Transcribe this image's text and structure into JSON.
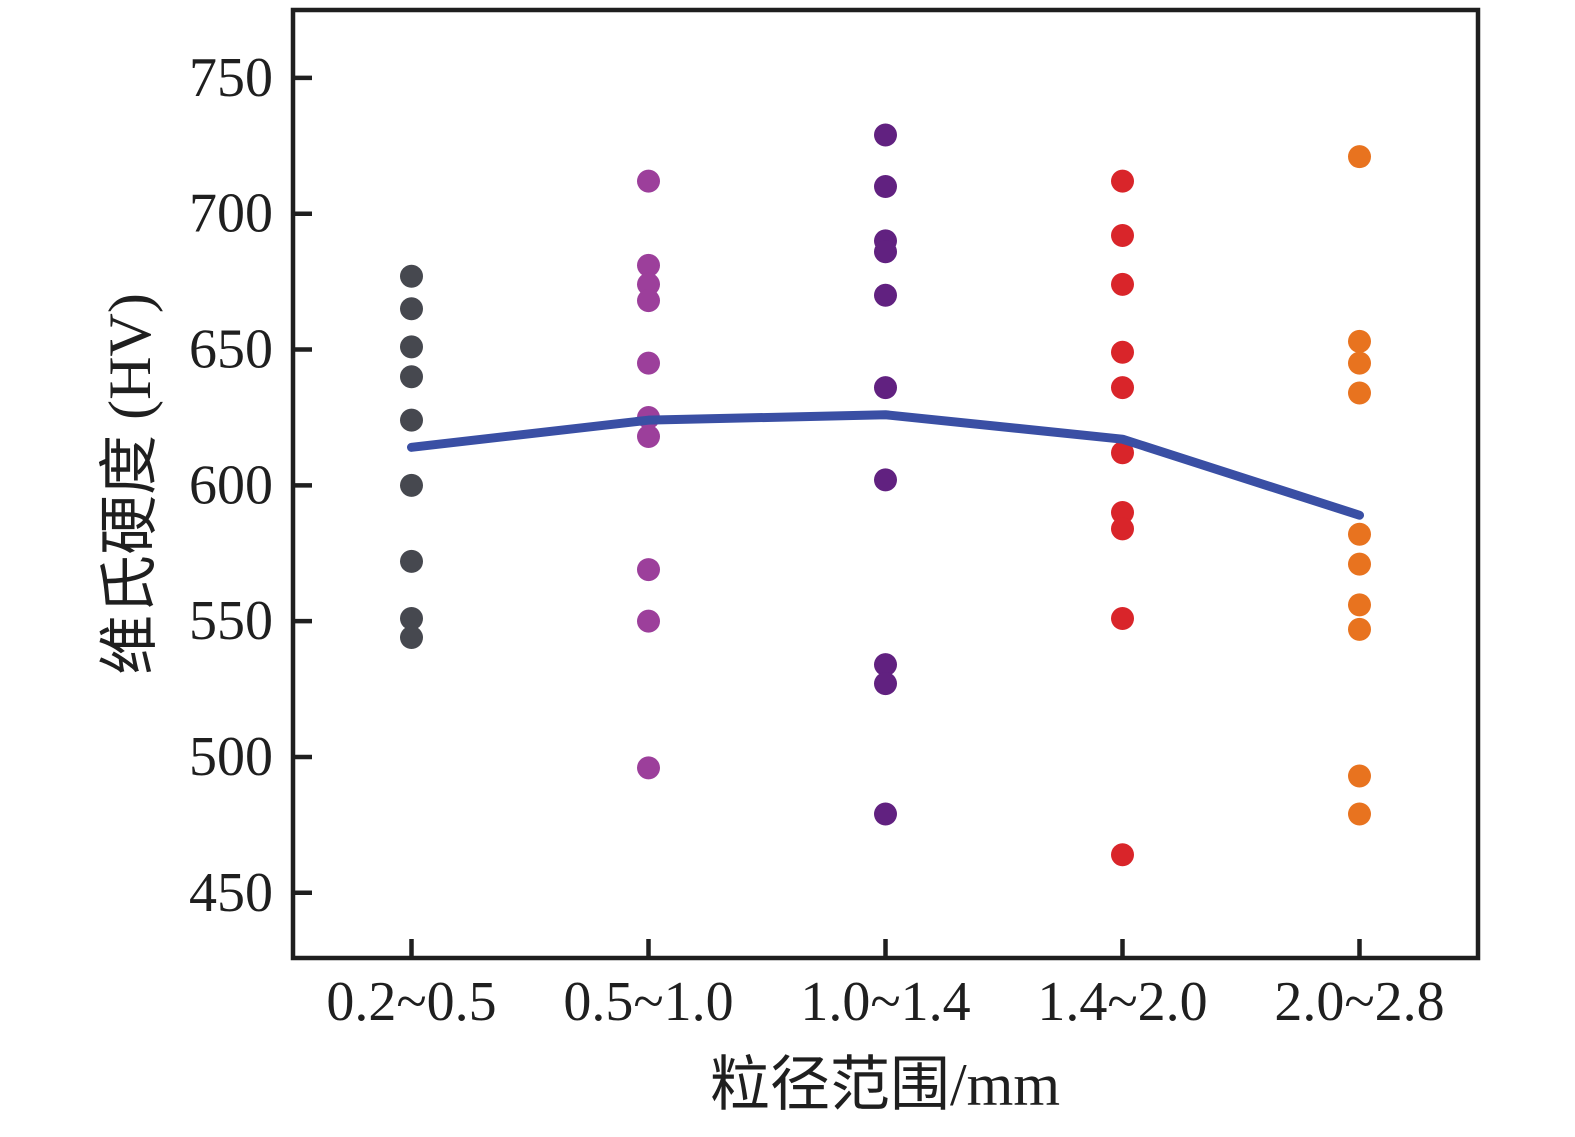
{
  "chart_data": {
    "type": "scatter",
    "title": "",
    "xlabel": "粒径范围/mm",
    "ylabel": "维氏硬度 (HV)",
    "categories": [
      "0.2~0.5",
      "0.5~1.0",
      "1.0~1.4",
      "1.4~2.0",
      "2.0~2.8"
    ],
    "ylim": [
      426,
      775
    ],
    "yticks": [
      450,
      500,
      550,
      600,
      650,
      700,
      750
    ],
    "grid": false,
    "legend": "none",
    "background_color": "#ffffff",
    "axis_color": "#1f1f1f",
    "series": [
      {
        "name": "0.2~0.5",
        "color": "#46484f",
        "values": [
          677,
          665,
          651,
          640,
          624,
          600,
          572,
          551,
          544
        ]
      },
      {
        "name": "0.5~1.0",
        "color": "#9c3f9b",
        "values": [
          712,
          681,
          674,
          668,
          645,
          625,
          618,
          569,
          550,
          496
        ]
      },
      {
        "name": "1.0~1.4",
        "color": "#612180",
        "values": [
          729,
          710,
          690,
          686,
          670,
          636,
          602,
          534,
          527,
          479
        ]
      },
      {
        "name": "1.4~2.0",
        "color": "#d9252a",
        "values": [
          712,
          692,
          674,
          649,
          636,
          612,
          590,
          584,
          551,
          464
        ]
      },
      {
        "name": "2.0~2.8",
        "color": "#e8731f",
        "values": [
          721,
          653,
          645,
          634,
          582,
          571,
          556,
          547,
          493,
          479
        ]
      }
    ],
    "mean_line": {
      "name": "group-mean-trend",
      "color": "#3a4fa4",
      "values": [
        614,
        624,
        626,
        617,
        589
      ]
    }
  }
}
